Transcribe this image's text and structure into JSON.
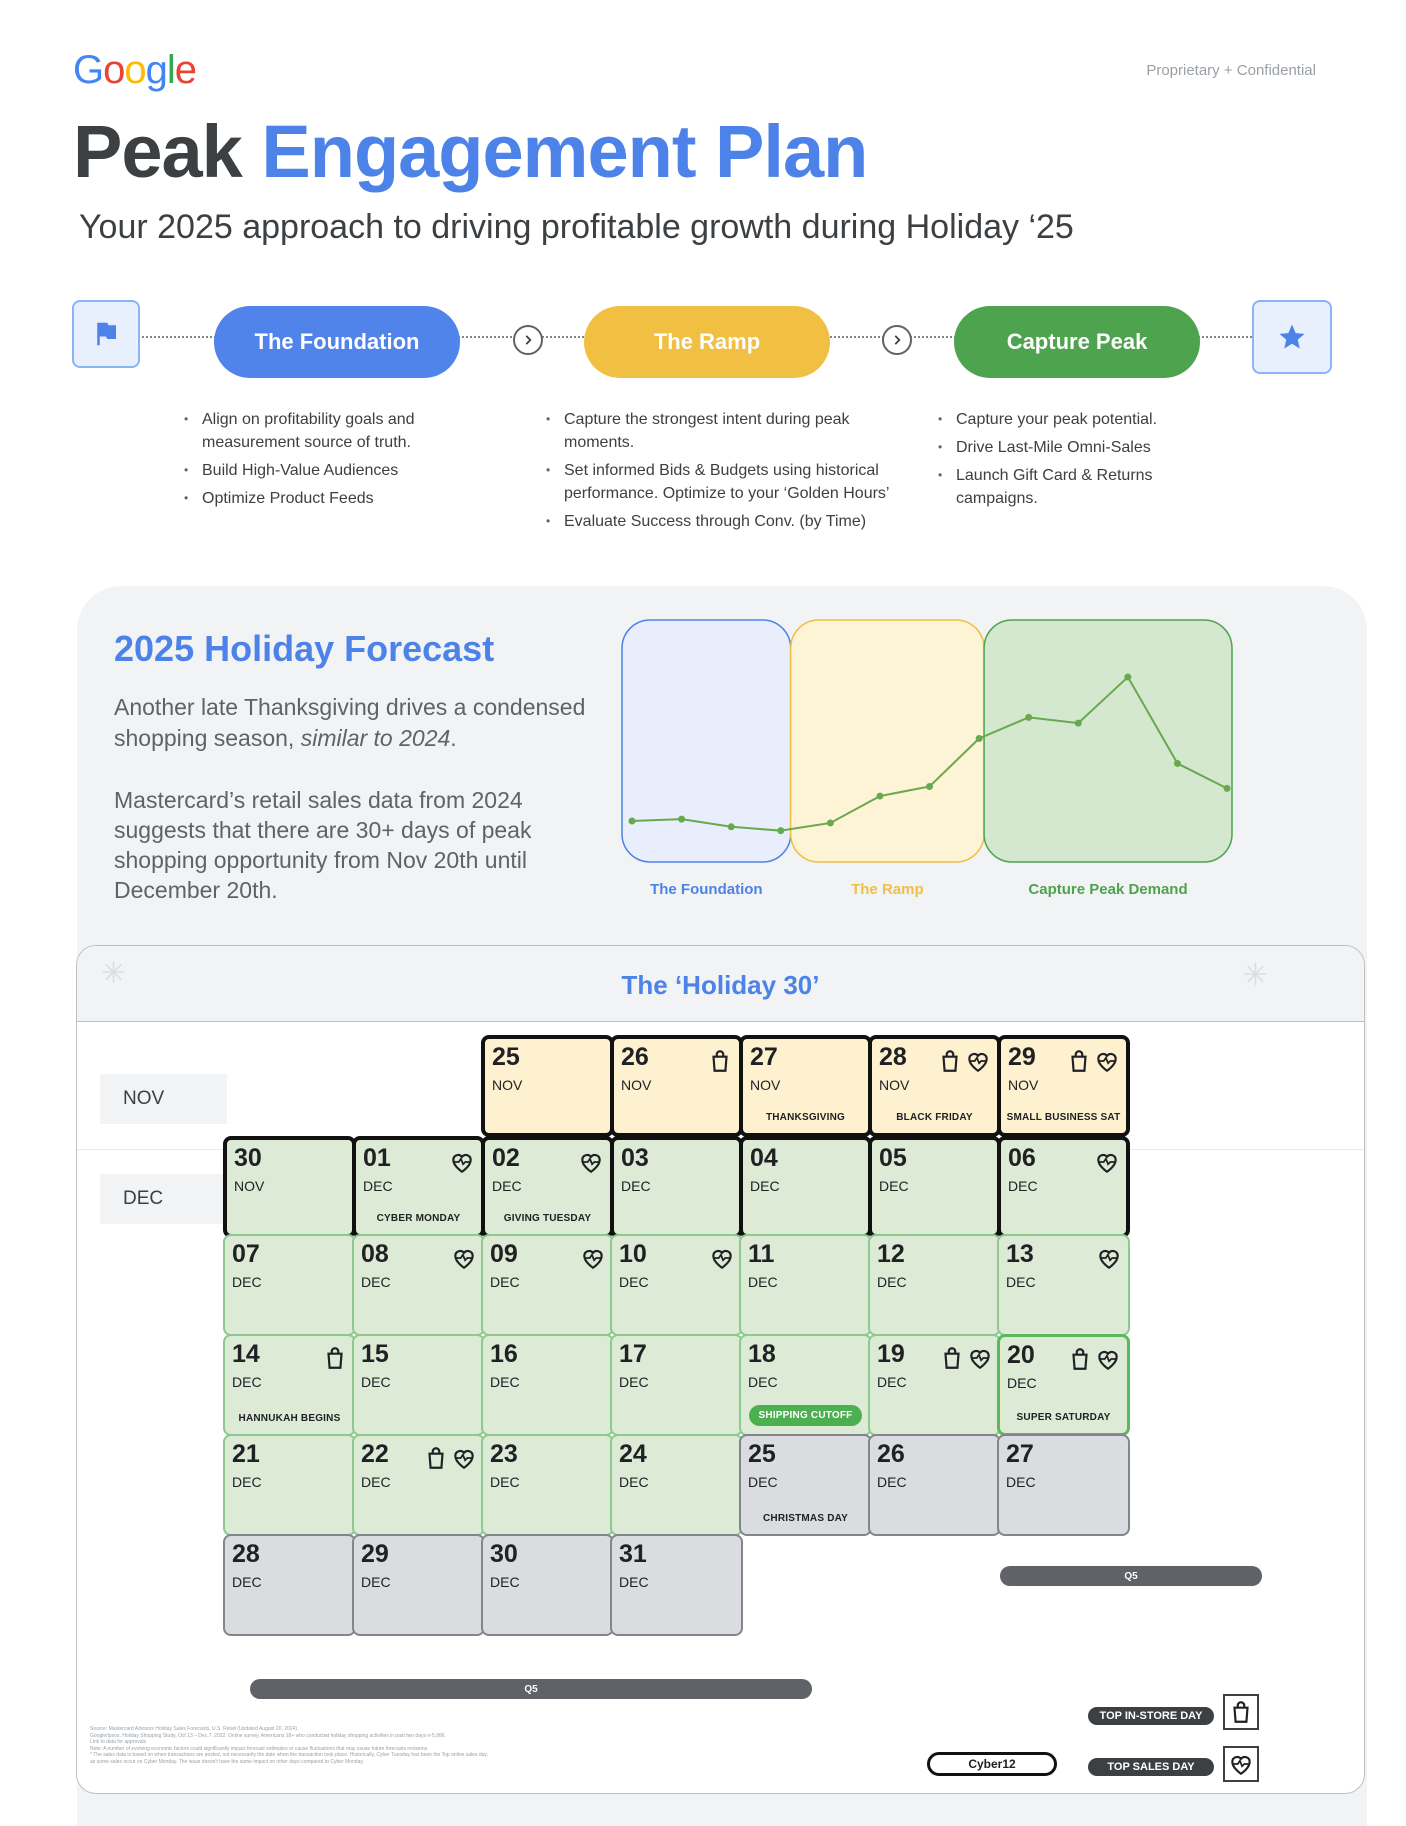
{
  "header": {
    "logo_letters": [
      {
        "ch": "G",
        "color": "#4285F4"
      },
      {
        "ch": "o",
        "color": "#EA4335"
      },
      {
        "ch": "o",
        "color": "#FBBC05"
      },
      {
        "ch": "g",
        "color": "#4285F4"
      },
      {
        "ch": "l",
        "color": "#34A853"
      },
      {
        "ch": "e",
        "color": "#EA4335"
      }
    ],
    "confidential": "Proprietary + Confidential",
    "title_dark": "Peak",
    "title_blue": "Engagement Plan",
    "subtitle": "Your 2025 approach to driving profitable growth during Holiday ‘25"
  },
  "phases": {
    "start_icon": "flag-icon",
    "end_icon": "star-icon",
    "items": [
      {
        "label": "The Foundation",
        "color": "#5084EA",
        "bullets": [
          "Align on profitability goals and measurement source of truth.",
          "Build High-Value Audiences",
          "Optimize Product Feeds"
        ]
      },
      {
        "label": "The Ramp",
        "color": "#F1BF41",
        "bullets": [
          "Capture the strongest intent during peak moments.",
          "Set informed Bids & Budgets using historical performance. Optimize to your ‘Golden Hours’",
          "Evaluate Success through Conv. (by Time)"
        ]
      },
      {
        "label": "Capture Peak",
        "color": "#4EA34F",
        "bullets": [
          "Capture your peak potential.",
          "Drive Last-Mile Omni-Sales",
          "Launch Gift Card & Returns campaigns."
        ]
      }
    ]
  },
  "forecast": {
    "title": "2025 Holiday Forecast",
    "p1_a": "Another late Thanksgiving drives a condensed shopping season, ",
    "p1_em": "similar to 2024",
    "p1_b": ".",
    "p2": "Mastercard’s retail sales data from 2024 suggests that there are 30+ days of peak shopping opportunity from Nov 20th until December 20th."
  },
  "chart_data": {
    "type": "line",
    "title": "",
    "xlabel": "",
    "ylabel": "",
    "regions": [
      {
        "label": "The Foundation",
        "color": "#4d82e8",
        "fill": "#e8eefb"
      },
      {
        "label": "The Ramp",
        "color": "#f1bf41",
        "fill": "#fdf4d6"
      },
      {
        "label": "Capture Peak Demand",
        "color": "#4ea34f",
        "fill": "#d3e8cf"
      }
    ],
    "region_bounds": [
      [
        0,
        3.2
      ],
      [
        3.2,
        7.1
      ],
      [
        7.1,
        12.1
      ]
    ],
    "series": [
      {
        "values": [
          0.13,
          0.14,
          0.1,
          0.08,
          0.12,
          0.26,
          0.31,
          0.56,
          0.67,
          0.64,
          0.88,
          0.43,
          0.3
        ]
      }
    ],
    "ylim": [
      0,
      1
    ],
    "line_color": "#6aa84f"
  },
  "calendar": {
    "title": "The ‘Holiday 30’",
    "months": [
      "NOV",
      "DEC"
    ],
    "days": [
      {
        "num": "25",
        "mon": "NOV",
        "ev": "",
        "style": "yellow",
        "icons": [],
        "col": 2,
        "row": 0
      },
      {
        "num": "26",
        "mon": "NOV",
        "ev": "",
        "style": "yellow",
        "icons": [
          "bag"
        ],
        "col": 3,
        "row": 0
      },
      {
        "num": "27",
        "mon": "NOV",
        "ev": "THANKSGIVING",
        "style": "yellow",
        "icons": [],
        "col": 4,
        "row": 0
      },
      {
        "num": "28",
        "mon": "NOV",
        "ev": "BLACK FRIDAY",
        "style": "yellow",
        "icons": [
          "bag",
          "heart"
        ],
        "col": 5,
        "row": 0
      },
      {
        "num": "29",
        "mon": "NOV",
        "ev": "SMALL BUSINESS SAT",
        "style": "yellow",
        "icons": [
          "bag",
          "heart"
        ],
        "col": 6,
        "row": 0
      },
      {
        "num": "30",
        "mon": "NOV",
        "ev": "",
        "style": "thick",
        "icons": [],
        "col": 0,
        "row": 1
      },
      {
        "num": "01",
        "mon": "DEC",
        "ev": "CYBER MONDAY",
        "style": "thick",
        "icons": [
          "heart"
        ],
        "col": 1,
        "row": 1
      },
      {
        "num": "02",
        "mon": "DEC",
        "ev": "GIVING TUESDAY",
        "style": "thick",
        "icons": [
          "heart"
        ],
        "col": 2,
        "row": 1
      },
      {
        "num": "03",
        "mon": "DEC",
        "ev": "",
        "style": "thick",
        "icons": [],
        "col": 3,
        "row": 1
      },
      {
        "num": "04",
        "mon": "DEC",
        "ev": "",
        "style": "thick",
        "icons": [],
        "col": 4,
        "row": 1
      },
      {
        "num": "05",
        "mon": "DEC",
        "ev": "",
        "style": "thick",
        "icons": [],
        "col": 5,
        "row": 1
      },
      {
        "num": "06",
        "mon": "DEC",
        "ev": "",
        "style": "thick",
        "icons": [
          "heart"
        ],
        "col": 6,
        "row": 1
      },
      {
        "num": "07",
        "mon": "DEC",
        "ev": "",
        "style": "green",
        "icons": [],
        "col": 0,
        "row": 2
      },
      {
        "num": "08",
        "mon": "DEC",
        "ev": "",
        "style": "green",
        "icons": [
          "heart"
        ],
        "col": 1,
        "row": 2
      },
      {
        "num": "09",
        "mon": "DEC",
        "ev": "",
        "style": "green",
        "icons": [
          "heart"
        ],
        "col": 2,
        "row": 2
      },
      {
        "num": "10",
        "mon": "DEC",
        "ev": "",
        "style": "green",
        "icons": [
          "heart"
        ],
        "col": 3,
        "row": 2
      },
      {
        "num": "11",
        "mon": "DEC",
        "ev": "",
        "style": "green",
        "icons": [],
        "col": 4,
        "row": 2
      },
      {
        "num": "12",
        "mon": "DEC",
        "ev": "",
        "style": "green",
        "icons": [],
        "col": 5,
        "row": 2
      },
      {
        "num": "13",
        "mon": "DEC",
        "ev": "",
        "style": "green",
        "icons": [
          "heart"
        ],
        "col": 6,
        "row": 2
      },
      {
        "num": "14",
        "mon": "DEC",
        "ev": "HANNUKAH BEGINS",
        "style": "green",
        "icons": [
          "bag"
        ],
        "col": 0,
        "row": 3
      },
      {
        "num": "15",
        "mon": "DEC",
        "ev": "",
        "style": "green",
        "icons": [],
        "col": 1,
        "row": 3
      },
      {
        "num": "16",
        "mon": "DEC",
        "ev": "",
        "style": "green",
        "icons": [],
        "col": 2,
        "row": 3
      },
      {
        "num": "17",
        "mon": "DEC",
        "ev": "",
        "style": "green",
        "icons": [],
        "col": 3,
        "row": 3
      },
      {
        "num": "18",
        "mon": "DEC",
        "ev": "SHIPPING CUTOFF",
        "style": "green",
        "evpill": true,
        "icons": [],
        "col": 4,
        "row": 3
      },
      {
        "num": "19",
        "mon": "DEC",
        "ev": "",
        "style": "green",
        "icons": [
          "bag",
          "heart"
        ],
        "col": 5,
        "row": 3
      },
      {
        "num": "20",
        "mon": "DEC",
        "ev": "SUPER SATURDAY",
        "style": "greenb",
        "icons": [
          "bag",
          "heart"
        ],
        "col": 6,
        "row": 3
      },
      {
        "num": "21",
        "mon": "DEC",
        "ev": "",
        "style": "green",
        "icons": [],
        "col": 0,
        "row": 4
      },
      {
        "num": "22",
        "mon": "DEC",
        "ev": "",
        "style": "green",
        "icons": [
          "bag",
          "heart"
        ],
        "col": 1,
        "row": 4
      },
      {
        "num": "23",
        "mon": "DEC",
        "ev": "",
        "style": "green",
        "icons": [],
        "col": 2,
        "row": 4
      },
      {
        "num": "24",
        "mon": "DEC",
        "ev": "",
        "style": "green",
        "icons": [],
        "col": 3,
        "row": 4
      },
      {
        "num": "25",
        "mon": "DEC",
        "ev": "CHRISTMAS DAY",
        "style": "grey",
        "icons": [],
        "col": 4,
        "row": 4
      },
      {
        "num": "26",
        "mon": "DEC",
        "ev": "",
        "style": "grey",
        "icons": [],
        "col": 5,
        "row": 4
      },
      {
        "num": "27",
        "mon": "DEC",
        "ev": "",
        "style": "grey",
        "icons": [],
        "col": 6,
        "row": 4
      },
      {
        "num": "28",
        "mon": "DEC",
        "ev": "",
        "style": "grey",
        "icons": [],
        "col": 0,
        "row": 5
      },
      {
        "num": "29",
        "mon": "DEC",
        "ev": "",
        "style": "grey",
        "icons": [],
        "col": 1,
        "row": 5
      },
      {
        "num": "30",
        "mon": "DEC",
        "ev": "",
        "style": "grey",
        "icons": [],
        "col": 2,
        "row": 5
      },
      {
        "num": "31",
        "mon": "DEC",
        "ev": "",
        "style": "grey",
        "icons": [],
        "col": 3,
        "row": 5
      }
    ],
    "q5_label": "Q5",
    "legend": {
      "instore": "TOP IN-STORE DAY",
      "sales": "TOP SALES  DAY",
      "cyber": "Cyber12"
    },
    "source_lines": [
      "Source: Mastercard Advisors Holiday Sales Forecasts, U.S. Retail (Updated August 20, 2024)",
      "Google/Ipsos, Holiday Shopping Study, Oct 13 – Dec 7, 2022. Online survey, Americans 18+ who conducted holiday shopping activities in past two days n-5,906.",
      "Link to data for approvals",
      "Note: A number of evolving economic factors could significantly impact forecast estimates or cause fluctuations that may cause future forecasts revisions.",
      "* The sales data is based on when transactions are posted, not necessarily the date when the transaction took place. Historically, Cyber Tuesday has been the Top online sales day,",
      "as some sales occur on Cyber Monday. The issue doesn't have the same impact on other days compared to Cyber Monday."
    ]
  }
}
